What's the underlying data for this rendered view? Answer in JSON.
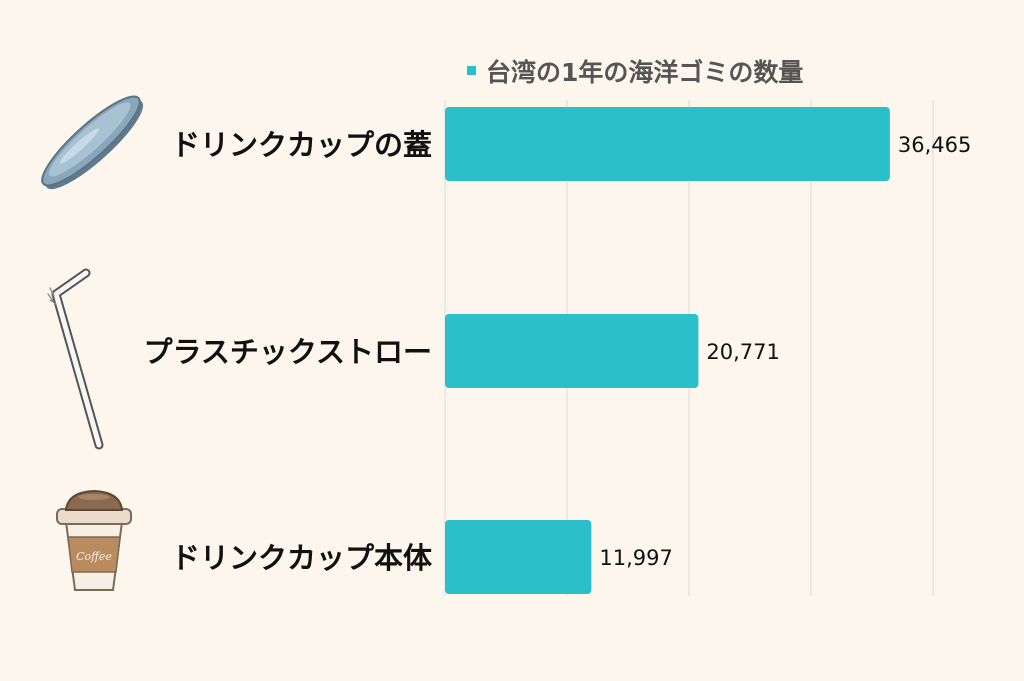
{
  "colors": {
    "background": "#fdf6ec",
    "bar": "#2abfc9",
    "grid": "#dcdcdc",
    "label": "#111111",
    "legend_text": "#555555"
  },
  "icons": [
    "drink-lid-icon",
    "straw-icon",
    "coffee-cup-icon"
  ],
  "chart_data": {
    "type": "bar",
    "orientation": "horizontal",
    "categories": [
      "ドリンクカップの蓋",
      "プラスチックストロー",
      "ドリンクカップ本体"
    ],
    "series": [
      {
        "name": "台湾の1年の海洋ゴミの数量",
        "values": [
          36465,
          20771,
          11997
        ]
      }
    ],
    "value_labels": [
      "36,465",
      "20,771",
      "11,997"
    ],
    "xlim": [
      0,
      40000
    ],
    "grid": true,
    "legend_position": "top",
    "cup_text": "Coffee"
  }
}
